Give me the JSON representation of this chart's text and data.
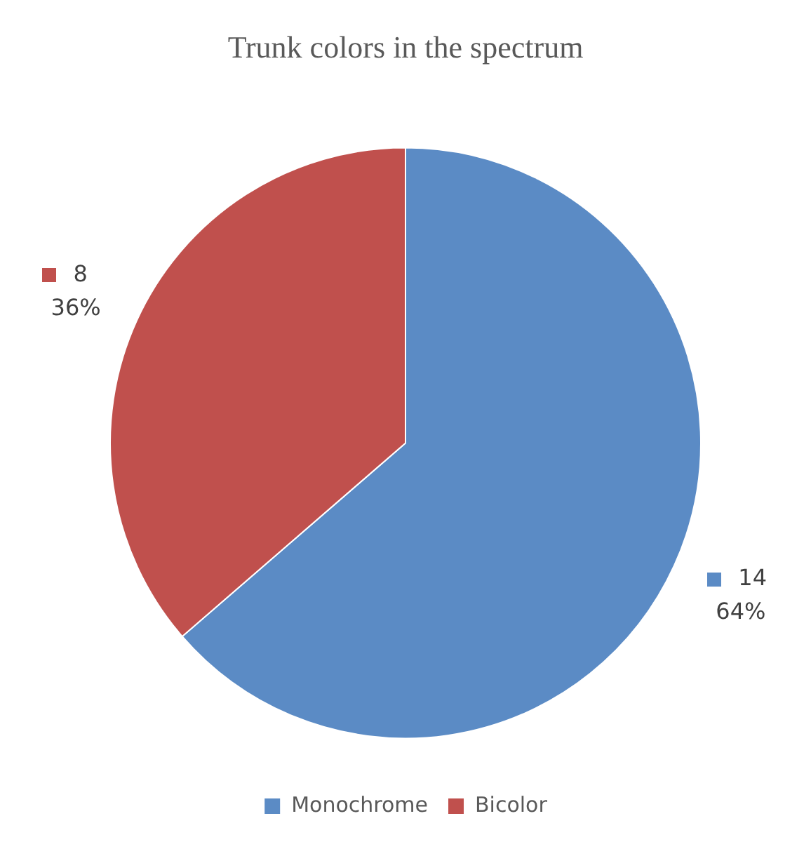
{
  "chart_data": {
    "type": "pie",
    "title": "Trunk colors in the spectrum",
    "categories": [
      "Monochrome",
      "Bicolor"
    ],
    "values": [
      14,
      8
    ],
    "colors": [
      "#5b8bc5",
      "#c0504d"
    ],
    "value_labels": [
      "14\n64%",
      "8\n36%"
    ],
    "legend": "bottom"
  }
}
